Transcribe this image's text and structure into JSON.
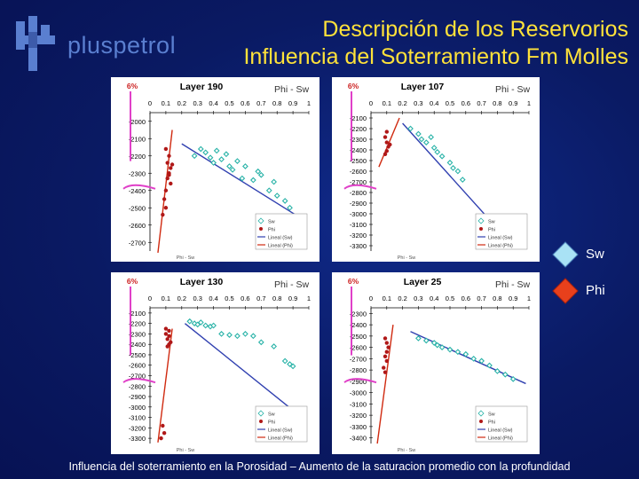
{
  "header": {
    "logo_text": "pluspetrol",
    "title_line1": "Descripción de los Reservorios",
    "title_line2": "Influencia del Soterramiento Fm Molles"
  },
  "legend": {
    "items": [
      {
        "label": "Sw",
        "color": "#a9e2f5"
      },
      {
        "label": "Phi",
        "color": "#e8401c"
      }
    ]
  },
  "caption": "Influencia del soterramiento en la Porosidad – Aumento de la saturacion promedio con la profundidad",
  "colors": {
    "background": "#0a1a63",
    "title": "#ffe23a",
    "sw_points": "#2ab3a8",
    "phi_points": "#b01818",
    "sw_trend": "#3040b0",
    "phi_trend": "#d02a10",
    "annotation": "#e040c8"
  },
  "chart_data": [
    {
      "type": "scatter",
      "title": "Layer 190",
      "subtitle": "Phi - Sw",
      "annotation": "6%",
      "x_ticks": [
        "0",
        "0.1",
        "0.2",
        "0.3",
        "0.4",
        "0.5",
        "0.6",
        "0.7",
        "0.8",
        "0.9",
        "1"
      ],
      "y_ticks": [
        "-2000",
        "-2100",
        "-2200",
        "-2300",
        "-2400",
        "-2500",
        "-2600",
        "-2700"
      ],
      "xlim": [
        0,
        1
      ],
      "ylim": [
        -2750,
        -1950
      ],
      "legend_labels": [
        "Sw",
        "Phi",
        "Lineal (Sw)",
        "Lineal (Phi)"
      ],
      "xlabel": "Phi - Sw",
      "series": [
        {
          "name": "Sw",
          "points": [
            [
              0.28,
              -2200
            ],
            [
              0.32,
              -2160
            ],
            [
              0.35,
              -2180
            ],
            [
              0.38,
              -2210
            ],
            [
              0.4,
              -2240
            ],
            [
              0.42,
              -2170
            ],
            [
              0.45,
              -2220
            ],
            [
              0.48,
              -2190
            ],
            [
              0.5,
              -2260
            ],
            [
              0.52,
              -2280
            ],
            [
              0.55,
              -2230
            ],
            [
              0.6,
              -2260
            ],
            [
              0.65,
              -2340
            ],
            [
              0.68,
              -2290
            ],
            [
              0.7,
              -2310
            ],
            [
              0.75,
              -2400
            ],
            [
              0.78,
              -2350
            ],
            [
              0.8,
              -2430
            ],
            [
              0.85,
              -2460
            ],
            [
              0.88,
              -2500
            ],
            [
              0.58,
              -2330
            ]
          ]
        },
        {
          "name": "Phi",
          "points": [
            [
              0.1,
              -2160
            ],
            [
              0.12,
              -2200
            ],
            [
              0.11,
              -2240
            ],
            [
              0.13,
              -2270
            ],
            [
              0.12,
              -2300
            ],
            [
              0.11,
              -2330
            ],
            [
              0.13,
              -2360
            ],
            [
              0.1,
              -2400
            ],
            [
              0.09,
              -2450
            ],
            [
              0.1,
              -2500
            ],
            [
              0.08,
              -2540
            ],
            [
              0.12,
              -2310
            ],
            [
              0.14,
              -2250
            ]
          ]
        }
      ],
      "trend_lines": [
        {
          "name": "Lineal (Sw)",
          "from": [
            0.2,
            -2130
          ],
          "to": [
            0.95,
            -2560
          ]
        },
        {
          "name": "Lineal (Phi)",
          "from": [
            0.14,
            -2050
          ],
          "to": [
            0.05,
            -2760
          ]
        }
      ]
    },
    {
      "type": "scatter",
      "title": "Layer 107",
      "subtitle": "Phi - Sw",
      "annotation": "6%",
      "x_ticks": [
        "0",
        "0.1",
        "0.2",
        "0.3",
        "0.4",
        "0.5",
        "0.6",
        "0.7",
        "0.8",
        "0.9",
        "1"
      ],
      "y_ticks": [
        "-2100",
        "-2200",
        "-2300",
        "-2400",
        "-2500",
        "-2600",
        "-2700",
        "-2800",
        "-2900",
        "-3000",
        "-3100",
        "-3200",
        "-3300"
      ],
      "xlim": [
        0,
        1
      ],
      "ylim": [
        -3350,
        -2050
      ],
      "legend_labels": [
        "Sw",
        "Phi",
        "Lineal (Sw)",
        "Lineal (Phi)"
      ],
      "xlabel": "Phi - Sw",
      "series": [
        {
          "name": "Sw",
          "points": [
            [
              0.25,
              -2200
            ],
            [
              0.3,
              -2250
            ],
            [
              0.32,
              -2300
            ],
            [
              0.35,
              -2330
            ],
            [
              0.38,
              -2280
            ],
            [
              0.4,
              -2380
            ],
            [
              0.42,
              -2420
            ],
            [
              0.45,
              -2460
            ],
            [
              0.5,
              -2520
            ],
            [
              0.52,
              -2570
            ],
            [
              0.55,
              -2600
            ],
            [
              0.58,
              -2680
            ]
          ]
        },
        {
          "name": "Phi",
          "points": [
            [
              0.1,
              -2230
            ],
            [
              0.09,
              -2280
            ],
            [
              0.1,
              -2330
            ],
            [
              0.11,
              -2370
            ],
            [
              0.1,
              -2410
            ],
            [
              0.09,
              -2440
            ],
            [
              0.12,
              -2350
            ]
          ]
        }
      ],
      "trend_lines": [
        {
          "name": "Lineal (Sw)",
          "from": [
            0.2,
            -2150
          ],
          "to": [
            0.85,
            -3220
          ]
        },
        {
          "name": "Lineal (Phi)",
          "from": [
            0.18,
            -2100
          ],
          "to": [
            0.05,
            -2560
          ]
        }
      ]
    },
    {
      "type": "scatter",
      "title": "Layer 130",
      "subtitle": "Phi - Sw",
      "annotation": "6%",
      "x_ticks": [
        "0",
        "0.1",
        "0.2",
        "0.3",
        "0.4",
        "0.5",
        "0.6",
        "0.7",
        "0.8",
        "0.9",
        "1"
      ],
      "y_ticks": [
        "-2100",
        "-2200",
        "-2300",
        "-2400",
        "-2500",
        "-2600",
        "-2700",
        "-2800",
        "-2900",
        "-3000",
        "-3100",
        "-3200",
        "-3300"
      ],
      "xlim": [
        0,
        1
      ],
      "ylim": [
        -3350,
        -2050
      ],
      "legend_labels": [
        "Sw",
        "Phi",
        "Lineal (Sw)",
        "Lineal (Phi)"
      ],
      "xlabel": "Phi - Sw",
      "series": [
        {
          "name": "Sw",
          "points": [
            [
              0.25,
              -2180
            ],
            [
              0.28,
              -2200
            ],
            [
              0.3,
              -2210
            ],
            [
              0.32,
              -2190
            ],
            [
              0.35,
              -2220
            ],
            [
              0.38,
              -2230
            ],
            [
              0.4,
              -2220
            ],
            [
              0.45,
              -2300
            ],
            [
              0.5,
              -2310
            ],
            [
              0.55,
              -2320
            ],
            [
              0.6,
              -2300
            ],
            [
              0.65,
              -2320
            ],
            [
              0.7,
              -2380
            ],
            [
              0.78,
              -2420
            ],
            [
              0.85,
              -2560
            ],
            [
              0.88,
              -2590
            ],
            [
              0.9,
              -2610
            ]
          ]
        },
        {
          "name": "Phi",
          "points": [
            [
              0.1,
              -2300
            ],
            [
              0.12,
              -2320
            ],
            [
              0.11,
              -2350
            ],
            [
              0.13,
              -2380
            ],
            [
              0.12,
              -2400
            ],
            [
              0.11,
              -2420
            ],
            [
              0.1,
              -2250
            ],
            [
              0.12,
              -2270
            ],
            [
              0.08,
              -3180
            ],
            [
              0.09,
              -3250
            ],
            [
              0.07,
              -3300
            ]
          ]
        }
      ],
      "trend_lines": [
        {
          "name": "Lineal (Sw)",
          "from": [
            0.22,
            -2200
          ],
          "to": [
            0.98,
            -3130
          ]
        },
        {
          "name": "Lineal (Phi)",
          "from": [
            0.14,
            -2250
          ],
          "to": [
            0.05,
            -3340
          ]
        }
      ]
    },
    {
      "type": "scatter",
      "title": "Layer 25",
      "subtitle": "Phi - Sw",
      "annotation": "6%",
      "x_ticks": [
        "0",
        "0.1",
        "0.2",
        "0.3",
        "0.4",
        "0.5",
        "0.6",
        "0.7",
        "0.8",
        "0.9",
        "1"
      ],
      "y_ticks": [
        "-2300",
        "-2400",
        "-2500",
        "-2600",
        "-2700",
        "-2800",
        "-2900",
        "-3000",
        "-3100",
        "-3200",
        "-3300",
        "-3400"
      ],
      "xlim": [
        0,
        1
      ],
      "ylim": [
        -3450,
        -2250
      ],
      "legend_labels": [
        "Sw",
        "Phi",
        "Lineal (Sw)",
        "Lineal (Phi)"
      ],
      "xlabel": "Phi - Sw",
      "series": [
        {
          "name": "Sw",
          "points": [
            [
              0.3,
              -2520
            ],
            [
              0.35,
              -2540
            ],
            [
              0.4,
              -2560
            ],
            [
              0.42,
              -2580
            ],
            [
              0.45,
              -2600
            ],
            [
              0.5,
              -2620
            ],
            [
              0.55,
              -2640
            ],
            [
              0.6,
              -2660
            ],
            [
              0.65,
              -2700
            ],
            [
              0.7,
              -2720
            ],
            [
              0.75,
              -2760
            ],
            [
              0.8,
              -2810
            ],
            [
              0.85,
              -2840
            ],
            [
              0.9,
              -2880
            ]
          ]
        },
        {
          "name": "Phi",
          "points": [
            [
              0.09,
              -2520
            ],
            [
              0.1,
              -2560
            ],
            [
              0.11,
              -2600
            ],
            [
              0.1,
              -2640
            ],
            [
              0.09,
              -2680
            ],
            [
              0.1,
              -2720
            ],
            [
              0.08,
              -2780
            ],
            [
              0.09,
              -2820
            ]
          ]
        }
      ],
      "trend_lines": [
        {
          "name": "Lineal (Sw)",
          "from": [
            0.25,
            -2460
          ],
          "to": [
            0.98,
            -2920
          ]
        },
        {
          "name": "Lineal (Phi)",
          "from": [
            0.14,
            -2400
          ],
          "to": [
            0.04,
            -3450
          ]
        }
      ]
    }
  ]
}
